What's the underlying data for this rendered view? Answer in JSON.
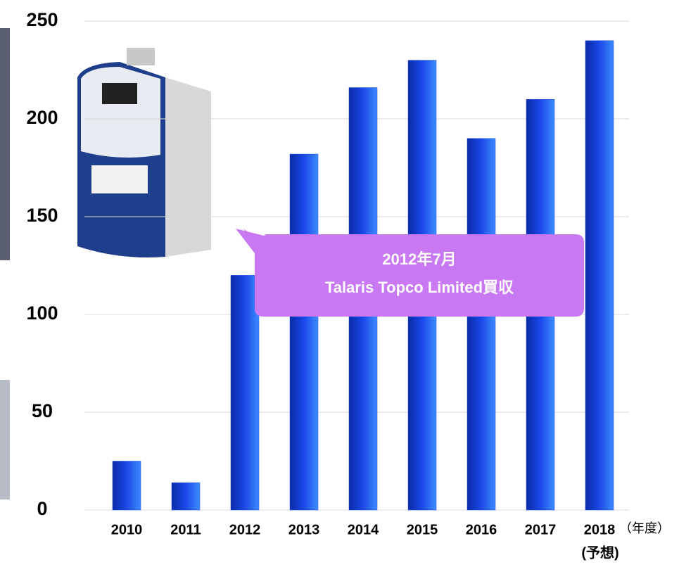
{
  "chart_data": {
    "type": "bar",
    "categories": [
      "2010",
      "2011",
      "2012",
      "2013",
      "2014",
      "2015",
      "2016",
      "2017",
      "2018"
    ],
    "values": [
      25,
      14,
      120,
      182,
      216,
      230,
      190,
      210,
      240
    ],
    "color": "#1a48e8",
    "ylim": [
      0,
      250
    ],
    "yticks": [
      0,
      50,
      100,
      150,
      200,
      250
    ],
    "grid": true,
    "forecast_note": "(予想)",
    "x_unit": "（年度）",
    "annotation": [
      "2012年7月",
      "Talaris Topco Limited買収"
    ]
  }
}
